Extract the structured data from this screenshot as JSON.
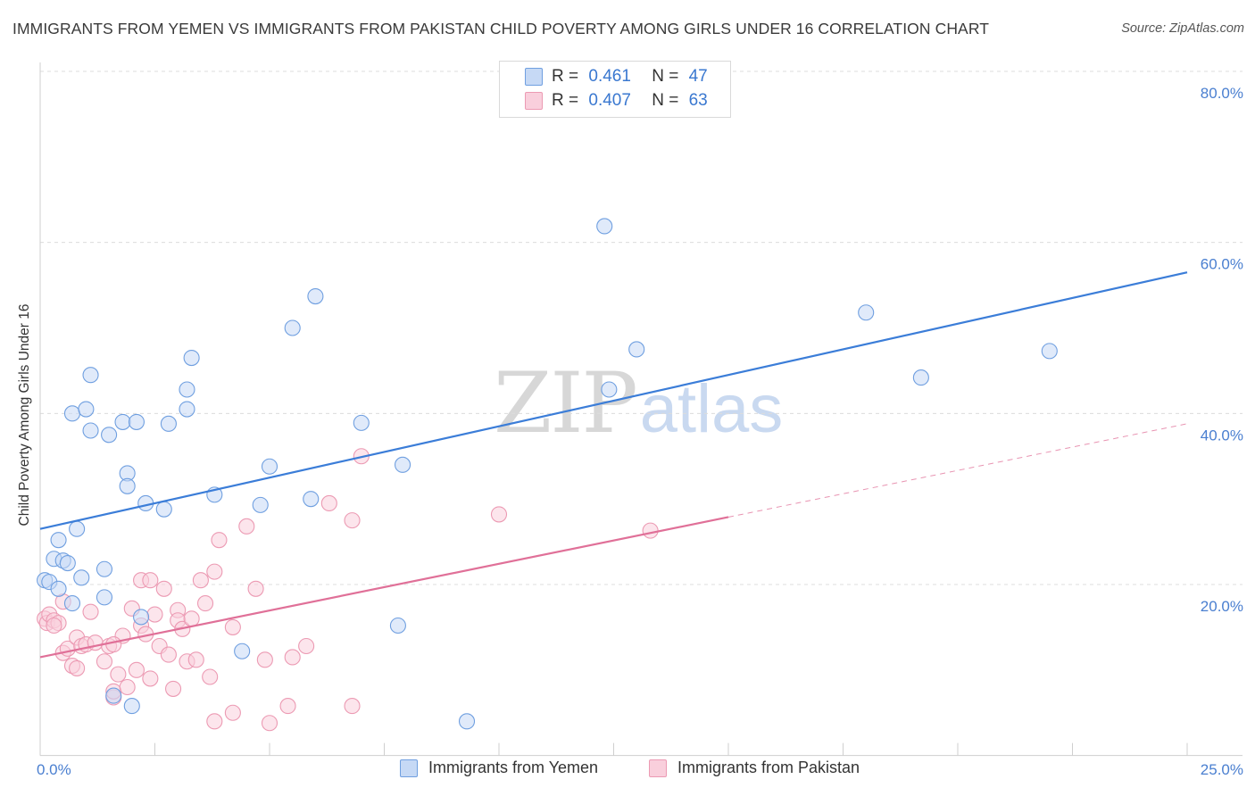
{
  "title": "IMMIGRANTS FROM YEMEN VS IMMIGRANTS FROM PAKISTAN CHILD POVERTY AMONG GIRLS UNDER 16 CORRELATION CHART",
  "source": "Source: ZipAtlas.com",
  "watermark": {
    "zip": "ZIP",
    "atlas": "atlas"
  },
  "colors": {
    "yemen_fill": "#c6d9f5",
    "yemen_stroke": "#6f9fe0",
    "yemen_line": "#3b7dd8",
    "pakistan_fill": "#f9cfdc",
    "pakistan_stroke": "#ec9ab3",
    "pakistan_line": "#e07098",
    "tick_label": "#4a7fd0",
    "grid": "#dcdcdc"
  },
  "legend_top": {
    "rows": [
      {
        "r_label": "R =",
        "r_value": "0.461",
        "n_label": "N =",
        "n_value": "47"
      },
      {
        "r_label": "R =",
        "r_value": "0.407",
        "n_label": "N =",
        "n_value": "63"
      }
    ]
  },
  "legend_bottom": [
    "Immigrants from Yemen",
    "Immigrants from Pakistan"
  ],
  "chart_data": {
    "type": "scatter",
    "title": "IMMIGRANTS FROM YEMEN VS IMMIGRANTS FROM PAKISTAN CHILD POVERTY AMONG GIRLS UNDER 16 CORRELATION CHART",
    "xlabel": "",
    "ylabel": "Child Poverty Among Girls Under 16",
    "xlim": [
      0,
      25
    ],
    "ylim": [
      0,
      82
    ],
    "x_tick_labels": [
      {
        "value": 0,
        "label": "0.0%"
      },
      {
        "value": 25,
        "label": "25.0%"
      }
    ],
    "y_tick_labels": [
      {
        "value": 20,
        "label": "20.0%"
      },
      {
        "value": 40,
        "label": "40.0%"
      },
      {
        "value": 60,
        "label": "60.0%"
      },
      {
        "value": 80,
        "label": "80.0%"
      }
    ],
    "grid": true,
    "legend_placement": "top-center and bottom",
    "series": [
      {
        "name": "Immigrants from Yemen",
        "r": 0.461,
        "n": 47,
        "trend": {
          "x": [
            0,
            25
          ],
          "y": [
            26.5,
            56.5
          ],
          "dashed_from": null
        },
        "points": [
          [
            0.1,
            20.5
          ],
          [
            0.2,
            20.3
          ],
          [
            0.3,
            23.0
          ],
          [
            0.4,
            19.5
          ],
          [
            0.4,
            25.2
          ],
          [
            0.5,
            22.8
          ],
          [
            0.6,
            22.5
          ],
          [
            0.7,
            17.8
          ],
          [
            0.7,
            40.0
          ],
          [
            0.8,
            26.5
          ],
          [
            0.9,
            20.8
          ],
          [
            1.0,
            40.5
          ],
          [
            1.1,
            44.5
          ],
          [
            1.1,
            38.0
          ],
          [
            1.4,
            21.8
          ],
          [
            1.4,
            18.5
          ],
          [
            1.5,
            37.5
          ],
          [
            1.8,
            39.0
          ],
          [
            1.9,
            33.0
          ],
          [
            1.9,
            31.5
          ],
          [
            2.1,
            39.0
          ],
          [
            2.2,
            16.2
          ],
          [
            2.3,
            29.5
          ],
          [
            2.0,
            5.8
          ],
          [
            2.7,
            28.8
          ],
          [
            2.8,
            38.8
          ],
          [
            3.2,
            42.8
          ],
          [
            3.2,
            40.5
          ],
          [
            3.3,
            46.5
          ],
          [
            3.8,
            30.5
          ],
          [
            4.4,
            12.2
          ],
          [
            4.8,
            29.3
          ],
          [
            5.0,
            33.8
          ],
          [
            5.5,
            50.0
          ],
          [
            5.9,
            30.0
          ],
          [
            6.0,
            53.7
          ],
          [
            7.0,
            38.9
          ],
          [
            7.8,
            15.2
          ],
          [
            7.9,
            34.0
          ],
          [
            9.3,
            4.0
          ],
          [
            12.3,
            61.9
          ],
          [
            12.4,
            42.8
          ],
          [
            13.0,
            47.5
          ],
          [
            18.0,
            51.8
          ],
          [
            19.2,
            44.2
          ],
          [
            22.0,
            47.3
          ],
          [
            1.6,
            7.0
          ]
        ]
      },
      {
        "name": "Immigrants from Pakistan",
        "r": 0.407,
        "n": 63,
        "trend": {
          "x": [
            0,
            25
          ],
          "y": [
            11.5,
            38.8
          ],
          "dashed_from": 15.0
        },
        "points": [
          [
            0.1,
            16.0
          ],
          [
            0.15,
            15.5
          ],
          [
            0.2,
            16.5
          ],
          [
            0.3,
            15.8
          ],
          [
            0.4,
            15.5
          ],
          [
            0.5,
            18.0
          ],
          [
            0.5,
            12.0
          ],
          [
            0.6,
            12.5
          ],
          [
            0.7,
            10.5
          ],
          [
            0.8,
            13.8
          ],
          [
            0.8,
            10.2
          ],
          [
            0.9,
            12.8
          ],
          [
            1.0,
            13.0
          ],
          [
            1.1,
            16.8
          ],
          [
            1.2,
            13.2
          ],
          [
            1.4,
            11.0
          ],
          [
            1.5,
            12.8
          ],
          [
            1.6,
            6.8
          ],
          [
            1.6,
            7.5
          ],
          [
            1.7,
            9.5
          ],
          [
            1.8,
            14.0
          ],
          [
            1.9,
            8.0
          ],
          [
            2.0,
            17.2
          ],
          [
            2.1,
            10.0
          ],
          [
            2.2,
            15.2
          ],
          [
            2.2,
            20.5
          ],
          [
            2.3,
            14.2
          ],
          [
            2.4,
            9.0
          ],
          [
            2.5,
            16.5
          ],
          [
            2.6,
            12.8
          ],
          [
            2.7,
            19.5
          ],
          [
            2.8,
            11.8
          ],
          [
            2.9,
            7.8
          ],
          [
            3.0,
            17.0
          ],
          [
            3.0,
            15.8
          ],
          [
            3.1,
            14.8
          ],
          [
            3.2,
            11.0
          ],
          [
            3.3,
            16.0
          ],
          [
            3.4,
            11.2
          ],
          [
            3.5,
            20.5
          ],
          [
            3.6,
            17.8
          ],
          [
            3.7,
            9.2
          ],
          [
            3.8,
            21.5
          ],
          [
            3.8,
            4.0
          ],
          [
            3.9,
            25.2
          ],
          [
            4.2,
            15.0
          ],
          [
            4.2,
            5.0
          ],
          [
            4.5,
            26.8
          ],
          [
            4.7,
            19.5
          ],
          [
            4.9,
            11.2
          ],
          [
            5.0,
            3.8
          ],
          [
            5.4,
            5.8
          ],
          [
            5.5,
            11.5
          ],
          [
            5.8,
            12.8
          ],
          [
            6.3,
            29.5
          ],
          [
            6.8,
            27.5
          ],
          [
            6.8,
            5.8
          ],
          [
            7.0,
            35.0
          ],
          [
            10.0,
            28.2
          ],
          [
            13.3,
            26.3
          ],
          [
            2.4,
            20.5
          ],
          [
            0.3,
            15.2
          ],
          [
            1.6,
            13.0
          ]
        ]
      }
    ]
  }
}
